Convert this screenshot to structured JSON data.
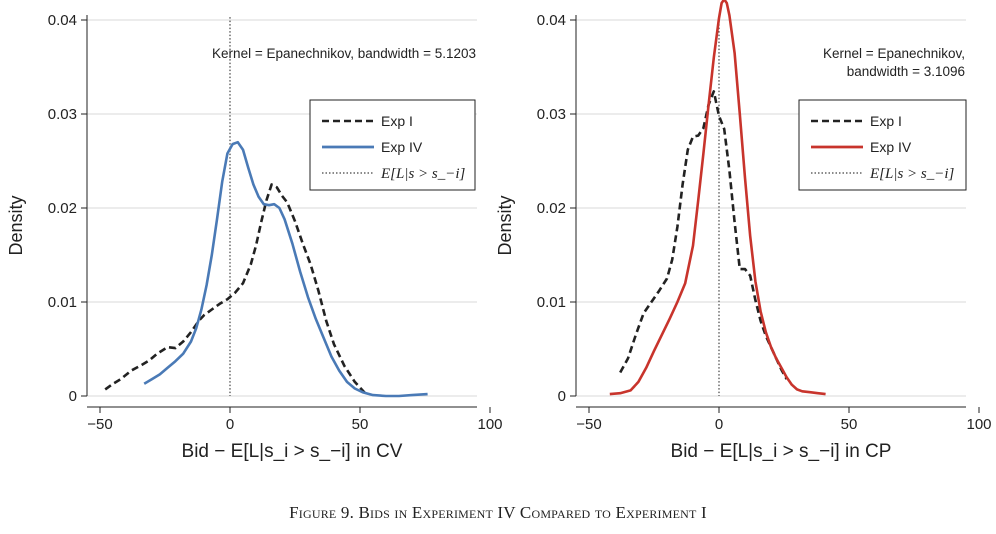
{
  "caption": "Figure 9. Bids in Experiment IV Compared to Experiment I",
  "chart_data": [
    {
      "type": "line",
      "panel": "left",
      "xlabel": "Bid − E[L|s_i > s_−i] in CV",
      "ylabel": "Density",
      "xlim": [
        -50,
        100
      ],
      "ylim": [
        0,
        0.04
      ],
      "xticks": [
        "−50",
        "0",
        "50",
        "100"
      ],
      "yticks": [
        "0",
        "0.01",
        "0.02",
        "0.03",
        "0.04"
      ],
      "grid": true,
      "annotation": [
        "Kernel = Epanechnikov, bandwidth = 5.1203"
      ],
      "vline_x": 0,
      "legend": [
        "Exp I",
        "Exp IV",
        "E[L|s > s_−i]"
      ],
      "legend_position": "upper-right",
      "series": [
        {
          "name": "Exp I",
          "color": "#222222",
          "style": "dashed",
          "x": [
            -48,
            -45,
            -42,
            -38,
            -34,
            -31,
            -28,
            -24,
            -21,
            -18,
            -15,
            -12,
            -10,
            -7,
            -4,
            -1,
            2,
            5,
            8,
            10,
            12,
            14,
            16,
            18,
            20,
            22,
            25,
            28,
            31,
            34,
            37,
            40,
            44,
            48,
            52
          ],
          "y": [
            0.0007,
            0.0013,
            0.0018,
            0.0027,
            0.0033,
            0.0038,
            0.0045,
            0.0052,
            0.0051,
            0.0058,
            0.0068,
            0.008,
            0.0086,
            0.0092,
            0.0098,
            0.0103,
            0.011,
            0.012,
            0.014,
            0.016,
            0.0185,
            0.0208,
            0.0225,
            0.0222,
            0.0213,
            0.0206,
            0.0186,
            0.0162,
            0.014,
            0.0112,
            0.008,
            0.0055,
            0.0032,
            0.0015,
            0.0003
          ]
        },
        {
          "name": "Exp IV",
          "color": "#4a7ab6",
          "style": "solid",
          "x": [
            -33,
            -30,
            -27,
            -24,
            -21,
            -18,
            -15,
            -13,
            -11,
            -9,
            -7,
            -5,
            -3,
            -1,
            1,
            3,
            5,
            7,
            9,
            11,
            13,
            15,
            17,
            19,
            21,
            24,
            27,
            30,
            33,
            36,
            39,
            42,
            45,
            48,
            51,
            55,
            60,
            65,
            70,
            76
          ],
          "y": [
            0.0013,
            0.0018,
            0.0023,
            0.003,
            0.0037,
            0.0045,
            0.0058,
            0.0072,
            0.0092,
            0.0118,
            0.015,
            0.0188,
            0.0228,
            0.0258,
            0.0268,
            0.027,
            0.0262,
            0.0243,
            0.0225,
            0.0212,
            0.0204,
            0.0203,
            0.0204,
            0.02,
            0.0188,
            0.0162,
            0.0132,
            0.0105,
            0.0082,
            0.0062,
            0.0042,
            0.0027,
            0.0015,
            0.0008,
            0.0004,
            0.0001,
            0.0,
            0.0,
            0.0001,
            0.0002
          ]
        }
      ]
    },
    {
      "type": "line",
      "panel": "right",
      "xlabel": "Bid − E[L|s_i > s_−i] in CP",
      "ylabel": "Density",
      "xlim": [
        -50,
        100
      ],
      "ylim": [
        0,
        0.04
      ],
      "xticks": [
        "−50",
        "0",
        "50",
        "100"
      ],
      "yticks": [
        "0",
        "0.01",
        "0.02",
        "0.03",
        "0.04"
      ],
      "grid": true,
      "annotation": [
        "Kernel = Epanechnikov,",
        "bandwidth = 3.1096"
      ],
      "vline_x": 0,
      "legend": [
        "Exp I",
        "Exp IV",
        "E[L|s > s_−i]"
      ],
      "legend_position": "upper-right",
      "series": [
        {
          "name": "Exp I",
          "color": "#222222",
          "style": "dashed",
          "x": [
            -38,
            -35,
            -32,
            -29,
            -26,
            -23,
            -20,
            -18,
            -16,
            -14,
            -12,
            -10,
            -8,
            -6,
            -4,
            -2,
            0,
            2,
            4,
            6,
            8,
            10,
            12,
            14,
            16,
            18,
            20,
            22,
            24,
            26
          ],
          "y": [
            0.0025,
            0.004,
            0.0065,
            0.0088,
            0.01,
            0.0112,
            0.0125,
            0.0145,
            0.018,
            0.0225,
            0.0262,
            0.0276,
            0.0277,
            0.0285,
            0.031,
            0.0324,
            0.0298,
            0.0284,
            0.024,
            0.0185,
            0.0135,
            0.0135,
            0.0128,
            0.0102,
            0.008,
            0.0064,
            0.0052,
            0.004,
            0.0028,
            0.0018
          ]
        },
        {
          "name": "Exp IV",
          "color": "#c8342c",
          "style": "solid",
          "x": [
            -42,
            -38,
            -34,
            -31,
            -28,
            -25,
            -22,
            -19,
            -16,
            -13,
            -10,
            -8,
            -6,
            -4,
            -2,
            0,
            1,
            2,
            3,
            4,
            6,
            8,
            10,
            12,
            14,
            16,
            18,
            20,
            22,
            24,
            26,
            28,
            30,
            32,
            35,
            38,
            41
          ],
          "y": [
            0.0002,
            0.0003,
            0.0006,
            0.0015,
            0.003,
            0.0048,
            0.0065,
            0.0082,
            0.01,
            0.012,
            0.016,
            0.0208,
            0.0258,
            0.031,
            0.036,
            0.0402,
            0.0418,
            0.0422,
            0.0418,
            0.0405,
            0.0365,
            0.03,
            0.0232,
            0.017,
            0.0122,
            0.009,
            0.0068,
            0.0052,
            0.004,
            0.003,
            0.002,
            0.0012,
            0.0007,
            0.0005,
            0.0004,
            0.0003,
            0.0002
          ]
        }
      ]
    }
  ]
}
